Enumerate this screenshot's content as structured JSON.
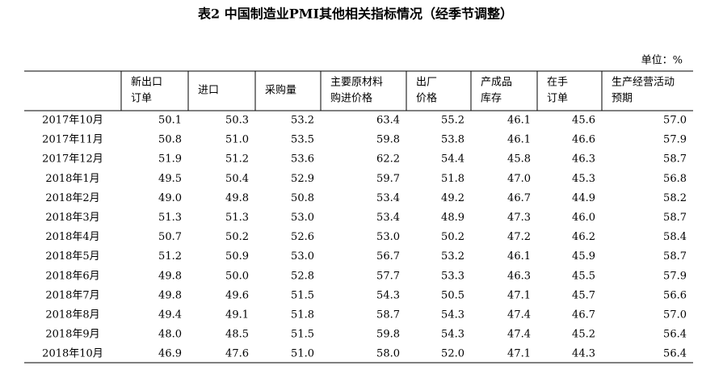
{
  "title": "表2  中国制造业PMI其他相关指标情况（经季节调整）",
  "unit": "单位：%",
  "table": {
    "header": [
      [],
      [
        "新出口",
        "订单"
      ],
      [
        "进口"
      ],
      [
        "采购量"
      ],
      [
        "主要原材料",
        "购进价格"
      ],
      [
        "出厂",
        "价格"
      ],
      [
        "产成品",
        "库存"
      ],
      [
        "在手",
        "订单"
      ],
      [
        "生产经营活动",
        "预期"
      ]
    ],
    "rows": [
      [
        "2017年10月",
        "50.1",
        "50.3",
        "53.2",
        "63.4",
        "55.2",
        "46.1",
        "45.6",
        "57.0"
      ],
      [
        "2017年11月",
        "50.8",
        "51.0",
        "53.5",
        "59.8",
        "53.8",
        "46.1",
        "46.6",
        "57.9"
      ],
      [
        "2017年12月",
        "51.9",
        "51.2",
        "53.6",
        "62.2",
        "54.4",
        "45.8",
        "46.3",
        "58.7"
      ],
      [
        "2018年1月",
        "49.5",
        "50.4",
        "52.9",
        "59.7",
        "51.8",
        "47.0",
        "45.3",
        "56.8"
      ],
      [
        "2018年2月",
        "49.0",
        "49.8",
        "50.8",
        "53.4",
        "49.2",
        "46.7",
        "44.9",
        "58.2"
      ],
      [
        "2018年3月",
        "51.3",
        "51.3",
        "53.0",
        "53.4",
        "48.9",
        "47.3",
        "46.0",
        "58.7"
      ],
      [
        "2018年4月",
        "50.7",
        "50.2",
        "52.6",
        "53.0",
        "50.2",
        "47.2",
        "46.2",
        "58.4"
      ],
      [
        "2018年5月",
        "51.2",
        "50.9",
        "53.0",
        "56.7",
        "53.2",
        "46.1",
        "45.9",
        "58.7"
      ],
      [
        "2018年6月",
        "49.8",
        "50.0",
        "52.8",
        "57.7",
        "53.3",
        "46.3",
        "45.5",
        "57.9"
      ],
      [
        "2018年7月",
        "49.8",
        "49.6",
        "51.5",
        "54.3",
        "50.5",
        "47.1",
        "45.7",
        "56.6"
      ],
      [
        "2018年8月",
        "49.4",
        "49.1",
        "51.8",
        "58.7",
        "54.3",
        "47.4",
        "46.7",
        "57.0"
      ],
      [
        "2018年9月",
        "48.0",
        "48.5",
        "51.5",
        "59.8",
        "54.3",
        "47.4",
        "45.2",
        "56.4"
      ],
      [
        "2018年10月",
        "46.9",
        "47.6",
        "51.0",
        "58.0",
        "52.0",
        "47.1",
        "44.3",
        "56.4"
      ]
    ]
  }
}
